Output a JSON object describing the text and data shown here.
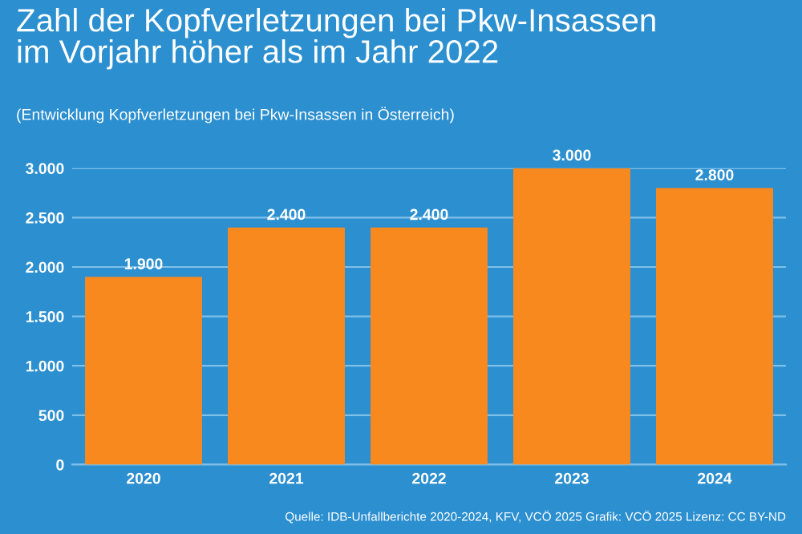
{
  "chart_data": {
    "type": "bar",
    "title": "Zahl der Kopfverletzungen bei Pkw-Insassen\nim Vorjahr höher als im Jahr 2022",
    "subtitle": "(Entwicklung Kopfverletzungen bei Pkw-Insassen in Österreich)",
    "categories": [
      "2020",
      "2021",
      "2022",
      "2023",
      "2024"
    ],
    "values": [
      1900,
      2400,
      2400,
      3000,
      2800
    ],
    "color": "#f7891f",
    "value_labels": [
      "1.900",
      "2.400",
      "2.400",
      "3.000",
      "2.800"
    ],
    "ylim": [
      0,
      3000
    ],
    "yticks": [
      {
        "value": 0,
        "label": "0"
      },
      {
        "value": 500,
        "label": "500"
      },
      {
        "value": 1000,
        "label": "1.000"
      },
      {
        "value": 1500,
        "label": "1.500"
      },
      {
        "value": 2000,
        "label": "2.000"
      },
      {
        "value": 2500,
        "label": "2.500"
      },
      {
        "value": 3000,
        "label": "3.000"
      }
    ],
    "grid": "y",
    "annotations": [
      "Quelle: IDB-Unfallberichte 2020-2024, KFV, VCÖ 2025 Grafik: VCÖ 2025 Lizenz: CC BY-ND"
    ]
  }
}
